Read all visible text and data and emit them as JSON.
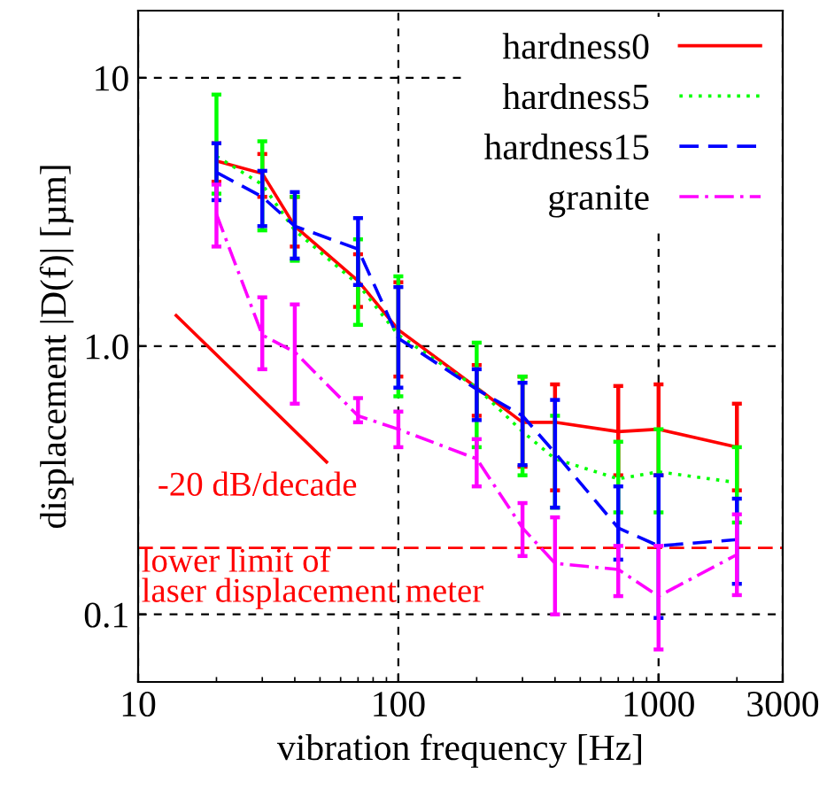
{
  "chart_data": {
    "type": "line",
    "xlabel": "vibration frequency [Hz]",
    "ylabel": "displacement |D(f)| [µm]",
    "log": "xy",
    "xlim": [
      10,
      3000
    ],
    "ylim": [
      0.056,
      17.8
    ],
    "xticks": [
      10,
      100,
      1000,
      3000
    ],
    "yticks": [
      {
        "value": 0.1,
        "label": "0.1"
      },
      {
        "value": 1,
        "label": "1.0"
      },
      {
        "value": 10,
        "label": "10"
      }
    ],
    "grid": true,
    "legend": "top right",
    "x": [
      20,
      30,
      40,
      70,
      100,
      200,
      300,
      400,
      700,
      1000,
      2000
    ],
    "series": [
      {
        "name": "hardness0",
        "color": "#ff0000",
        "line_style": "solid",
        "values": [
          4.9,
          4.4,
          2.8,
          1.75,
          1.15,
          0.7,
          0.52,
          0.52,
          0.48,
          0.49,
          0.42
        ],
        "errors": [
          [
            4.1,
            5.7
          ],
          [
            3.6,
            5.2
          ],
          [
            2.35,
            3.6
          ],
          [
            1.4,
            2.2
          ],
          [
            0.77,
            1.73
          ],
          [
            0.55,
            0.85
          ],
          [
            0.355,
            0.77
          ],
          [
            0.29,
            0.72
          ],
          [
            0.33,
            0.71
          ],
          [
            0.33,
            0.72
          ],
          [
            0.29,
            0.61
          ]
        ]
      },
      {
        "name": "hardness5",
        "color": "#00ff00",
        "line_style": "dotted",
        "values": [
          5.1,
          4.0,
          2.7,
          1.7,
          1.1,
          0.7,
          0.48,
          0.38,
          0.32,
          0.34,
          0.31
        ],
        "errors": [
          [
            3.7,
            8.66
          ],
          [
            2.7,
            5.8
          ],
          [
            2.08,
            3.6
          ],
          [
            1.2,
            2.5
          ],
          [
            0.65,
            1.82
          ],
          [
            0.42,
            1.03
          ],
          [
            0.33,
            0.77
          ],
          [
            0.25,
            0.55
          ],
          [
            0.24,
            0.44
          ],
          [
            0.24,
            0.49
          ],
          [
            0.22,
            0.42
          ]
        ]
      },
      {
        "name": "hardness15",
        "color": "#0000ff",
        "line_style": "dashed",
        "values": [
          4.44,
          3.6,
          2.8,
          2.3,
          1.07,
          0.69,
          0.55,
          0.4,
          0.21,
          0.18,
          0.19
        ],
        "errors": [
          [
            3.5,
            5.7
          ],
          [
            2.8,
            4.5
          ],
          [
            2.12,
            3.75
          ],
          [
            1.69,
            3.0
          ],
          [
            0.7,
            1.66
          ],
          [
            0.53,
            0.82
          ],
          [
            0.36,
            0.73
          ],
          [
            0.25,
            0.63
          ],
          [
            0.16,
            0.3
          ],
          [
            0.097,
            0.33
          ],
          [
            0.13,
            0.27
          ]
        ]
      },
      {
        "name": "granite",
        "color": "#ff00ff",
        "line_style": "dashdot",
        "values": [
          3.1,
          1.1,
          0.95,
          0.55,
          0.49,
          0.38,
          0.21,
          0.155,
          0.147,
          0.117,
          0.167
        ],
        "errors": [
          [
            2.35,
            4.0
          ],
          [
            0.82,
            1.52
          ],
          [
            0.61,
            1.43
          ],
          [
            0.52,
            0.64
          ],
          [
            0.42,
            0.57
          ],
          [
            0.3,
            0.45
          ],
          [
            0.165,
            0.26
          ],
          [
            0.1,
            0.23
          ],
          [
            0.117,
            0.18
          ],
          [
            0.074,
            0.18
          ],
          [
            0.118,
            0.236
          ]
        ]
      },
      {
        "color": "#ff0000",
        "line_style": "solid",
        "x": [
          14,
          53
        ],
        "values": [
          1.3,
          0.37
        ]
      }
    ],
    "ref_lines": [
      {
        "axis": "y",
        "value": 0.177,
        "label": "lower limit of\nlaser displacement meter",
        "color": "#ff0000",
        "line_style": "dashed"
      }
    ],
    "annotations": [
      "-20 dB/decade"
    ]
  }
}
